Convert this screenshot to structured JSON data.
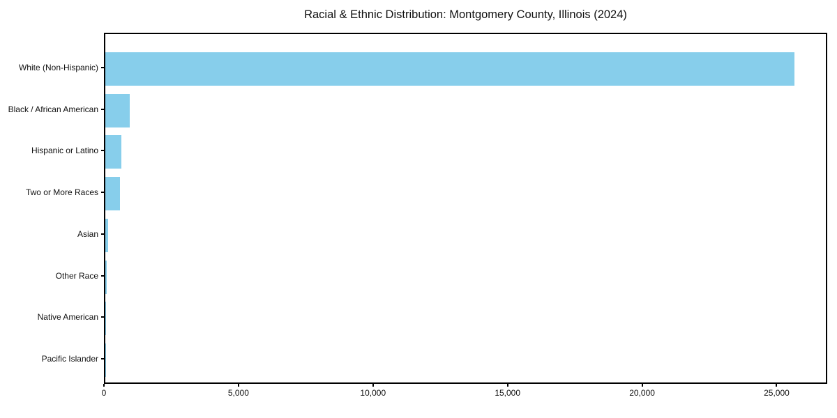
{
  "figure": {
    "background": "#ffffff"
  },
  "chart_data": {
    "type": "bar",
    "orientation": "horizontal",
    "title": "Racial & Ethnic Distribution: Montgomery County, Illinois (2024)",
    "categories": [
      "White (Non-Hispanic)",
      "Black / African American",
      "Hispanic or Latino",
      "Two or More Races",
      "Asian",
      "Other Race",
      "Native American",
      "Pacific Islander"
    ],
    "values": [
      25600,
      910,
      590,
      550,
      100,
      40,
      30,
      10
    ],
    "bar_color": "#87CEEB",
    "axis_color": "#000000",
    "text_color": "#111111",
    "xlabel": "",
    "ylabel": "",
    "xlim": [
      0,
      26880
    ],
    "x_ticks": [
      0,
      5000,
      10000,
      15000,
      20000,
      25000
    ],
    "x_tick_labels": [
      "0",
      "5,000",
      "10,000",
      "15,000",
      "20,000",
      "25,000"
    ],
    "grid": false,
    "legend": null
  }
}
